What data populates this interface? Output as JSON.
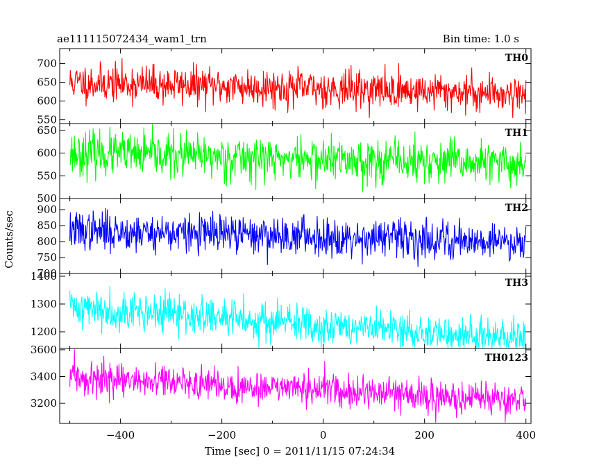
{
  "header": {
    "title": "ae111115072434_wam1_trn",
    "bin_time": "Bin time: 1.0 s"
  },
  "chart_data": {
    "type": "line",
    "title": "ae111115072434_wam1_trn",
    "subtitle": "Bin time: 1.0 s",
    "xlabel": "Time [sec] 0 = 2011/11/15 07:24:34",
    "ylabel": "Counts/sec",
    "xlim": [
      -520,
      410
    ],
    "x_range": [
      -500,
      400
    ],
    "x_step": 1,
    "x_ticks": [
      -400,
      -200,
      0,
      200,
      400
    ],
    "grid": false,
    "legend": "none",
    "series": [
      {
        "name": "TH0",
        "color": "#ff0000",
        "ylim": [
          540,
          740
        ],
        "y_ticks": [
          550,
          600,
          650,
          700
        ],
        "trend": {
          "start": 650,
          "end": 620
        },
        "noise_sd": 25,
        "seed": 11
      },
      {
        "name": "TH1",
        "color": "#00ff00",
        "ylim": [
          500,
          665
        ],
        "y_ticks": [
          500,
          550,
          600,
          650
        ],
        "trend": {
          "start": 600,
          "end": 575
        },
        "noise_sd": 24,
        "seed": 23
      },
      {
        "name": "TH2",
        "color": "#0000ff",
        "ylim": [
          700,
          935
        ],
        "y_ticks": [
          700,
          750,
          800,
          850,
          900
        ],
        "trend": {
          "start": 835,
          "end": 800
        },
        "noise_sd": 30,
        "seed": 37
      },
      {
        "name": "TH3",
        "color": "#00ffff",
        "ylim": [
          1140,
          1410
        ],
        "y_ticks": [
          1200,
          1300,
          1400
        ],
        "trend": {
          "start": 1290,
          "end": 1170
        },
        "noise_sd": 35,
        "seed": 41
      },
      {
        "name": "TH0123",
        "color": "#ff00ff",
        "ylim": [
          3050,
          3610
        ],
        "y_ticks": [
          3200,
          3400,
          3600
        ],
        "trend": {
          "start": 3390,
          "end": 3220
        },
        "noise_sd": 60,
        "seed": 59
      }
    ]
  }
}
